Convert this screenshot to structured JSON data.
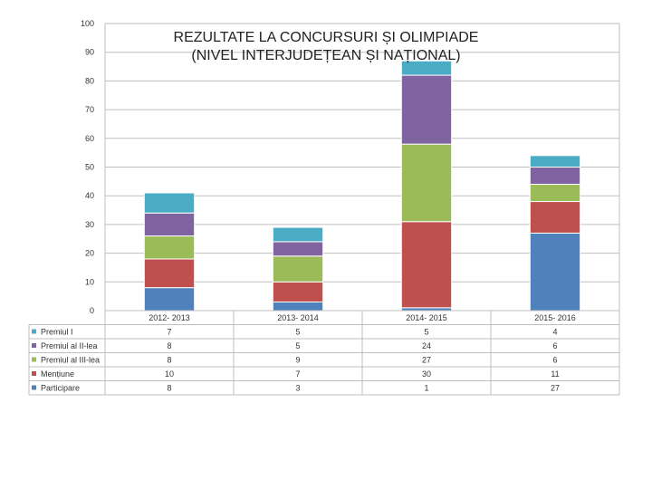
{
  "chart_data": {
    "type": "bar",
    "stacked": true,
    "title": "REZULTATE LA CONCURSURI ȘI OLIMPIADE",
    "subtitle": "(NIVEL INTERJUDEȚEAN ȘI NAȚIONAL)",
    "categories": [
      "2012- 2013",
      "2013- 2014",
      "2014- 2015",
      "2015- 2016"
    ],
    "ylim": [
      0,
      100
    ],
    "yticks": [
      0,
      10,
      20,
      30,
      40,
      50,
      60,
      70,
      80,
      90,
      100
    ],
    "grid": true,
    "legend": "data-table-left",
    "series": [
      {
        "name": "Premiul I",
        "values": [
          7,
          5,
          5,
          4
        ],
        "color": "#4bacc6"
      },
      {
        "name": "Premiul al II-lea",
        "values": [
          8,
          5,
          24,
          6
        ],
        "color": "#8064a2"
      },
      {
        "name": "Premiul al III-lea",
        "values": [
          8,
          9,
          27,
          6
        ],
        "color": "#9bbb59"
      },
      {
        "name": "Mențiune",
        "values": [
          10,
          7,
          30,
          11
        ],
        "color": "#c0504d"
      },
      {
        "name": "Participare",
        "values": [
          8,
          3,
          1,
          27
        ],
        "color": "#4f81bd"
      }
    ]
  }
}
